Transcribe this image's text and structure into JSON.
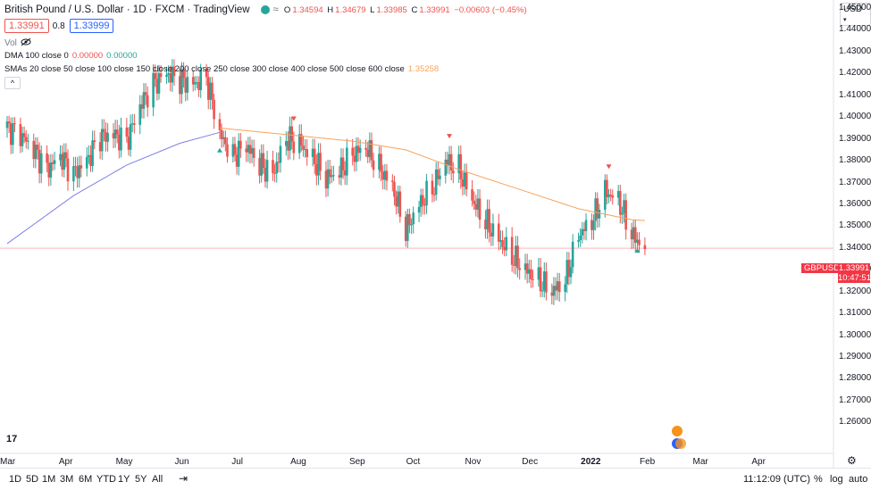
{
  "header": {
    "symbol_title": "British Pound / U.S. Dollar · 1D · FXCM · TradingView",
    "ohlc": {
      "o_label": "O",
      "o": "1.34594",
      "h_label": "H",
      "h": "1.34679",
      "l_label": "L",
      "l": "1.33985",
      "c_label": "C",
      "c": "1.33991",
      "change": "−0.00603 (−0.45%)"
    },
    "sell_price": "1.33991",
    "spread": "0.8",
    "buy_price": "1.33999",
    "vol_label": "Vol",
    "dma_label": "DMA 100 close 0",
    "dma_v1": "0.00000",
    "dma_v2": "0.00000",
    "sma_label": "SMAs 20 close 50 close 100 close 150 close 200 close 250 close 300 close 400 close 500 close 600 close",
    "sma_value": "1.35258",
    "collapse_glyph": "^"
  },
  "price_axis": {
    "currency_btn": "USD",
    "labels": [
      "1.45000",
      "1.44000",
      "1.43000",
      "1.42000",
      "1.41000",
      "1.40000",
      "1.39000",
      "1.38000",
      "1.37000",
      "1.36000",
      "1.35000",
      "1.34000",
      "1.33000",
      "1.32000",
      "1.31000",
      "1.30000",
      "1.29000",
      "1.28000",
      "1.27000",
      "1.26000"
    ],
    "symbol_tag": "GBPUSD",
    "current_price": "1.33991",
    "countdown": "10:47:51"
  },
  "time_axis": {
    "labels": [
      "Mar",
      "Apr",
      "May",
      "Jun",
      "Jul",
      "Aug",
      "Sep",
      "Oct",
      "Nov",
      "Dec",
      "2022",
      "Feb",
      "Mar",
      "Apr"
    ]
  },
  "timeframes": [
    "1D",
    "5D",
    "1M",
    "3M",
    "6M",
    "YTD",
    "1Y",
    "5Y",
    "All"
  ],
  "footer": {
    "clock": "11:12:09 (UTC)",
    "percent": "%",
    "log": "log",
    "auto": "auto"
  },
  "logo": "17",
  "colors": {
    "up": "#26a69a",
    "down": "#ef5350",
    "sma": "#f7a35c",
    "dma": "#7e7ee8",
    "price_line": "#f23645"
  },
  "chart_data": {
    "type": "candlestick",
    "symbol": "GBPUSD",
    "timeframe": "1D",
    "ylim": [
      1.255,
      1.455
    ],
    "x_range": [
      "2021-03-01",
      "2022-04-30"
    ],
    "last_close": 1.33991,
    "series": [
      {
        "name": "GBPUSD",
        "type": "candlestick",
        "points": [
          [
            "2021-03-01",
            1.395
          ],
          [
            "2021-03-08",
            1.392
          ],
          [
            "2021-03-15",
            1.385
          ],
          [
            "2021-03-22",
            1.376
          ],
          [
            "2021-03-29",
            1.382
          ],
          [
            "2021-04-05",
            1.374
          ],
          [
            "2021-04-12",
            1.38
          ],
          [
            "2021-04-19",
            1.391
          ],
          [
            "2021-04-26",
            1.392
          ],
          [
            "2021-05-03",
            1.389
          ],
          [
            "2021-05-10",
            1.405
          ],
          [
            "2021-05-17",
            1.415
          ],
          [
            "2021-05-24",
            1.42
          ],
          [
            "2021-05-31",
            1.417
          ],
          [
            "2021-06-07",
            1.415
          ],
          [
            "2021-06-14",
            1.418
          ],
          [
            "2021-06-21",
            1.392
          ],
          [
            "2021-06-28",
            1.382
          ],
          [
            "2021-07-05",
            1.387
          ],
          [
            "2021-07-12",
            1.378
          ],
          [
            "2021-07-19",
            1.374
          ],
          [
            "2021-07-26",
            1.39
          ],
          [
            "2021-08-02",
            1.388
          ],
          [
            "2021-08-09",
            1.381
          ],
          [
            "2021-08-16",
            1.372
          ],
          [
            "2021-08-23",
            1.375
          ],
          [
            "2021-08-30",
            1.383
          ],
          [
            "2021-09-06",
            1.386
          ],
          [
            "2021-09-13",
            1.377
          ],
          [
            "2021-09-20",
            1.368
          ],
          [
            "2021-09-27",
            1.348
          ],
          [
            "2021-10-04",
            1.36
          ],
          [
            "2021-10-11",
            1.367
          ],
          [
            "2021-10-18",
            1.38
          ],
          [
            "2021-10-25",
            1.376
          ],
          [
            "2021-11-01",
            1.362
          ],
          [
            "2021-11-08",
            1.352
          ],
          [
            "2021-11-15",
            1.344
          ],
          [
            "2021-11-22",
            1.336
          ],
          [
            "2021-11-29",
            1.33
          ],
          [
            "2021-12-06",
            1.325
          ],
          [
            "2021-12-13",
            1.32
          ],
          [
            "2021-12-20",
            1.325
          ],
          [
            "2021-12-27",
            1.346
          ],
          [
            "2022-01-03",
            1.352
          ],
          [
            "2022-01-10",
            1.366
          ],
          [
            "2022-01-17",
            1.362
          ],
          [
            "2022-01-24",
            1.346
          ],
          [
            "2022-01-31",
            1.33991
          ]
        ]
      },
      {
        "name": "SMA",
        "type": "line",
        "points": [
          [
            "2021-06-21",
            1.395
          ],
          [
            "2021-07-26",
            1.392
          ],
          [
            "2021-08-30",
            1.389
          ],
          [
            "2021-09-27",
            1.385
          ],
          [
            "2021-10-25",
            1.376
          ],
          [
            "2021-11-29",
            1.366
          ],
          [
            "2021-12-27",
            1.358
          ],
          [
            "2022-01-24",
            1.353
          ],
          [
            "2022-01-31",
            1.35258
          ]
        ]
      },
      {
        "name": "DMA",
        "type": "line",
        "points": [
          [
            "2021-03-01",
            1.342
          ],
          [
            "2021-04-05",
            1.364
          ],
          [
            "2021-05-03",
            1.378
          ],
          [
            "2021-05-31",
            1.388
          ],
          [
            "2021-06-21",
            1.393
          ]
        ]
      }
    ],
    "markers": [
      {
        "date": "2021-06-21",
        "kind": "up-arrow"
      },
      {
        "date": "2021-07-30",
        "kind": "down-arrow"
      },
      {
        "date": "2021-10-20",
        "kind": "down-arrow"
      },
      {
        "date": "2022-01-12",
        "kind": "down-arrow"
      },
      {
        "date": "2022-01-27",
        "kind": "up-arrow"
      }
    ]
  }
}
